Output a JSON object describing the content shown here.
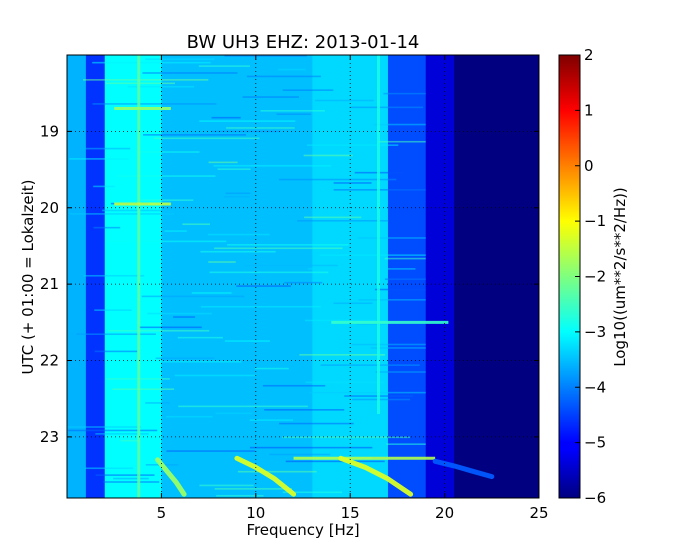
{
  "chart_data": {
    "type": "heatmap",
    "title": "BW UH3 EHZ: 2013-01-14",
    "xlabel": "Frequency [Hz]",
    "ylabel": "UTC (+ 01:00 = Lokalzeit)",
    "xlim": [
      0,
      25
    ],
    "ylim": [
      18.0,
      23.8
    ],
    "x_ticks": [
      5,
      10,
      15,
      20,
      25
    ],
    "x_tick_labels": [
      "5",
      "10",
      "15",
      "20",
      "25"
    ],
    "y_ticks": [
      19,
      20,
      21,
      22,
      23
    ],
    "y_tick_labels": [
      "19",
      "20",
      "21",
      "22",
      "23"
    ],
    "y_inverted": true,
    "grid": true,
    "colormap": "jet",
    "colorbar": {
      "label": "Log10((um**2/s**2/Hz))",
      "range": [
        -6,
        2
      ],
      "ticks": [
        -6,
        -5,
        -4,
        -3,
        -2,
        -1,
        0,
        1,
        2
      ],
      "tick_labels": [
        "−6",
        "−5",
        "−4",
        "−3",
        "−2",
        "−1",
        "0",
        "1",
        "2"
      ]
    },
    "frequency_bands_log10": [
      {
        "from_hz": 0.0,
        "to_hz": 1.0,
        "level": -3.6
      },
      {
        "from_hz": 1.0,
        "to_hz": 2.0,
        "level": -4.6
      },
      {
        "from_hz": 2.0,
        "to_hz": 5.0,
        "level": -3.0
      },
      {
        "from_hz": 5.0,
        "to_hz": 13.0,
        "level": -3.5
      },
      {
        "from_hz": 13.0,
        "to_hz": 17.0,
        "level": -3.3
      },
      {
        "from_hz": 17.0,
        "to_hz": 19.0,
        "level": -4.4
      },
      {
        "from_hz": 19.0,
        "to_hz": 20.5,
        "level": -5.3
      },
      {
        "from_hz": 20.5,
        "to_hz": 25.0,
        "level": -6.0
      }
    ],
    "features": [
      {
        "name": "line 3.8 Hz",
        "kind": "vline",
        "freq_hz": 3.8,
        "time_from": 18.0,
        "time_to": 23.8,
        "level": -2.2
      },
      {
        "name": "line 16.5 Hz",
        "kind": "vline",
        "freq_hz": 16.5,
        "time_from": 18.0,
        "time_to": 22.7,
        "level": -2.8
      },
      {
        "name": "band 21.5h",
        "kind": "hline",
        "time": 21.5,
        "freq_from": 14.0,
        "freq_to": 20.2,
        "level": -2.6
      },
      {
        "name": "band 23.3h",
        "kind": "hline",
        "time": 23.28,
        "freq_from": 12.0,
        "freq_to": 19.5,
        "level": -1.6
      },
      {
        "name": "band 18.7h",
        "kind": "hline",
        "time": 18.7,
        "freq_from": 2.5,
        "freq_to": 5.5,
        "level": -1.8
      },
      {
        "name": "band 19.95h",
        "kind": "hline",
        "time": 19.95,
        "freq_from": 2.5,
        "freq_to": 5.5,
        "level": -1.5
      },
      {
        "name": "sweep 1",
        "kind": "curve",
        "points": [
          [
            4.8,
            23.3
          ],
          [
            5.3,
            23.45
          ],
          [
            5.8,
            23.6
          ],
          [
            6.2,
            23.75
          ]
        ],
        "level": -1.8
      },
      {
        "name": "sweep 2",
        "kind": "curve",
        "points": [
          [
            9.0,
            23.28
          ],
          [
            10.0,
            23.4
          ],
          [
            11.0,
            23.55
          ],
          [
            12.0,
            23.75
          ]
        ],
        "level": -1.3
      },
      {
        "name": "sweep 3",
        "kind": "curve",
        "points": [
          [
            14.5,
            23.28
          ],
          [
            15.8,
            23.4
          ],
          [
            17.0,
            23.55
          ],
          [
            18.2,
            23.75
          ]
        ],
        "level": -1.3
      },
      {
        "name": "trail",
        "kind": "curve",
        "points": [
          [
            19.5,
            23.32
          ],
          [
            20.5,
            23.38
          ],
          [
            21.5,
            23.45
          ],
          [
            22.5,
            23.52
          ]
        ],
        "level": -4.3
      }
    ]
  }
}
